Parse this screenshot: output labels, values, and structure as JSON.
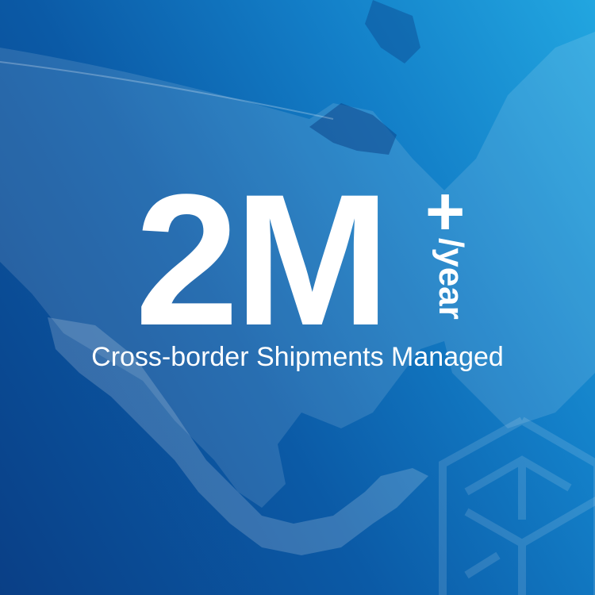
{
  "headline": {
    "value": "2M",
    "suffix": "+",
    "unit": "/year"
  },
  "subtitle": "Cross-border Shipments Managed",
  "colors": {
    "background_dark": "#0a3f86",
    "background_light": "#22a6e0",
    "text": "#ffffff"
  },
  "icons": {
    "background": "north-america-map",
    "logo": "hexagon-cube-logo"
  }
}
